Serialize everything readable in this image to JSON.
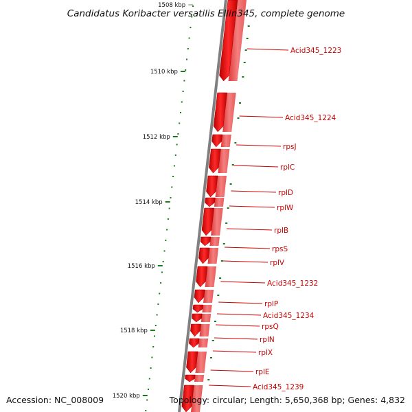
{
  "title": "Candidatus Koribacter versatilis Ellin345, complete genome",
  "accession": "Accession: NC_008009",
  "topology": "Topology: circular; Length: 5,650,368 bp; Genes: 4,832",
  "colors": {
    "gene_fill": "#ee0000",
    "gene_fill_light": "#f47f7f",
    "backbone": "#808080",
    "tick": "#1a7a1a",
    "label": "#cc0000"
  },
  "ruler": [
    {
      "label": "1508 kbp",
      "faded": true
    },
    {
      "label": "1510 kbp"
    },
    {
      "label": "1512 kbp"
    },
    {
      "label": "1514 kbp"
    },
    {
      "label": "1516 kbp"
    },
    {
      "label": "1518 kbp"
    },
    {
      "label": "1520 kbp"
    }
  ],
  "genes": [
    {
      "label": "Acid345_1223"
    },
    {
      "label": "Acid345_1224"
    },
    {
      "label": "rpsJ"
    },
    {
      "label": "rplC"
    },
    {
      "label": "rplD"
    },
    {
      "label": "rplW"
    },
    {
      "label": "rplB"
    },
    {
      "label": "rpsS"
    },
    {
      "label": "rplV"
    },
    {
      "label": "Acid345_1232"
    },
    {
      "label": "rplP"
    },
    {
      "label": "Acid345_1234"
    },
    {
      "label": "rpsQ"
    },
    {
      "label": "rplN"
    },
    {
      "label": "rplX"
    },
    {
      "label": "rplE"
    },
    {
      "label": "Acid345_1239"
    }
  ]
}
